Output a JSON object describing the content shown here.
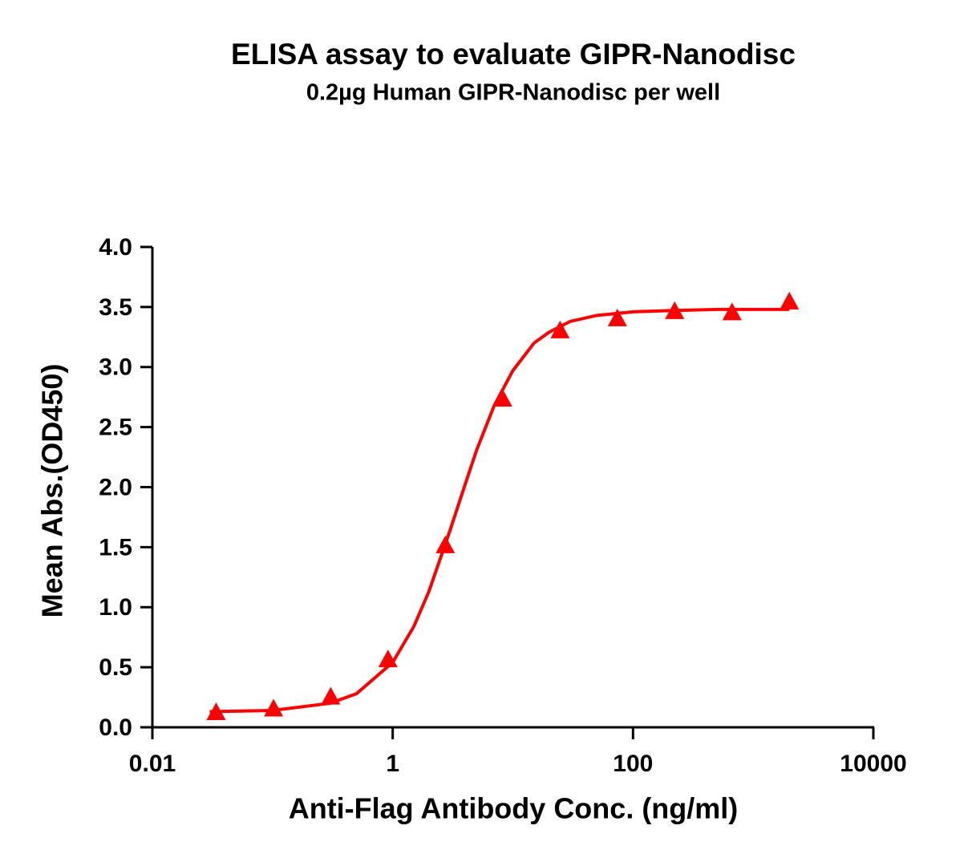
{
  "chart_data": {
    "type": "scatter",
    "title": "ELISA assay to evaluate GIPR-Nanodisc",
    "subtitle": "0.2µg Human GIPR-Nanodisc per well",
    "x_label": "Anti-Flag Antibody Conc. (ng/ml)",
    "y_label": "Mean Abs.(OD450)",
    "x_scale": "log",
    "xlim": [
      0.01,
      10000
    ],
    "xticks": [
      0.01,
      1,
      100,
      10000
    ],
    "ylim": [
      0,
      4
    ],
    "yticks": [
      {
        "value": 0,
        "label": "0.0"
      },
      0.5,
      {
        "value": 1,
        "label": "1.0"
      },
      1.5,
      {
        "value": 2,
        "label": "2.0"
      },
      2.5,
      {
        "value": 3,
        "label": "3.0"
      },
      3.5,
      {
        "value": 4,
        "label": "4.0"
      }
    ],
    "series": [
      {
        "color": "#ff0000",
        "marker": "triangle",
        "x": [
          0.0339,
          0.102,
          0.305,
          0.914,
          2.74,
          8.23,
          24.7,
          74.1,
          222,
          667,
          2000
        ],
        "values": [
          0.12,
          0.15,
          0.25,
          0.56,
          1.51,
          2.73,
          3.3,
          3.4,
          3.46,
          3.45,
          3.54
        ]
      },
      {
        "color": "#ff0000",
        "marker": "none",
        "x": [
          0.03,
          0.1,
          0.3,
          0.5,
          1,
          1.5,
          2,
          3,
          4,
          5,
          7,
          10,
          15,
          20,
          30,
          50,
          100,
          200,
          500,
          2000
        ],
        "values": [
          0.13,
          0.14,
          0.2,
          0.28,
          0.54,
          0.84,
          1.13,
          1.64,
          2.02,
          2.31,
          2.68,
          2.97,
          3.2,
          3.29,
          3.38,
          3.43,
          3.46,
          3.47,
          3.48,
          3.48
        ]
      }
    ]
  }
}
